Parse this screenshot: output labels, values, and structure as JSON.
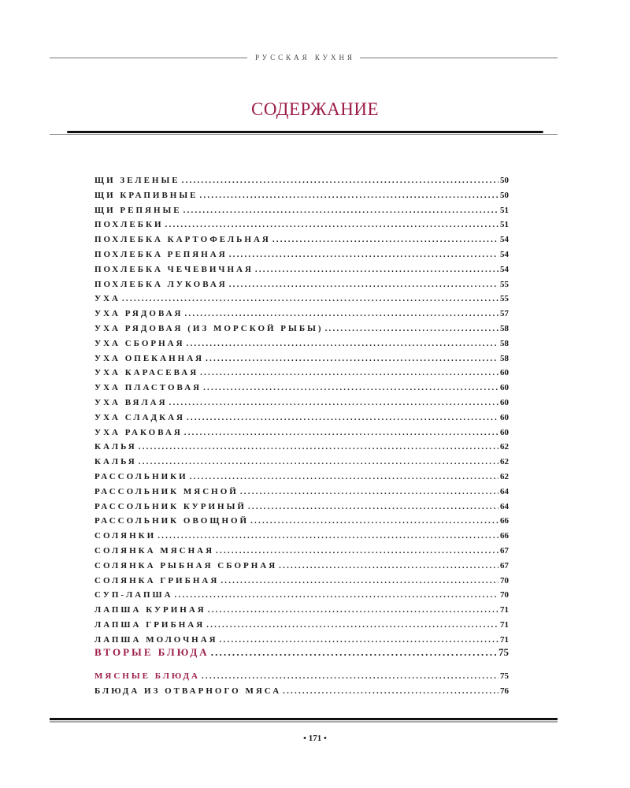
{
  "running_head": "РУССКАЯ КУХНЯ",
  "title": "СОДЕРЖАНИЕ",
  "entries": [
    {
      "label": "ЩИ ЗЕЛЕНЫЕ",
      "page": "50"
    },
    {
      "label": "ЩИ КРАПИВНЫЕ",
      "page": "50"
    },
    {
      "label": "ЩИ РЕПЯНЫЕ",
      "page": "51"
    },
    {
      "label": "ПОХЛЕБКИ",
      "page": "51"
    },
    {
      "label": "ПОХЛЕБКА КАРТОФЕЛЬНАЯ",
      "page": "54"
    },
    {
      "label": "ПОХЛЕБКА РЕПЯНАЯ",
      "page": "54"
    },
    {
      "label": "ПОХЛЕБКА ЧЕЧЕВИЧНАЯ",
      "page": "54"
    },
    {
      "label": "ПОХЛЕБКА ЛУКОВАЯ",
      "page": "55"
    },
    {
      "label": "УХА",
      "page": "55"
    },
    {
      "label": "УХА РЯДОВАЯ",
      "page": "57"
    },
    {
      "label": "УХА РЯДОВАЯ (ИЗ МОРСКОЙ РЫБЫ)",
      "page": "58"
    },
    {
      "label": "УХА СБОРНАЯ",
      "page": "58"
    },
    {
      "label": "УХА ОПЕКАННАЯ",
      "page": "58"
    },
    {
      "label": "УХА КАРАСЕВАЯ",
      "page": "60"
    },
    {
      "label": "УХА ПЛАСТОВАЯ",
      "page": "60"
    },
    {
      "label": "УХА ВЯЛАЯ",
      "page": "60"
    },
    {
      "label": "УХА СЛАДКАЯ",
      "page": "60"
    },
    {
      "label": "УХА РАКОВАЯ",
      "page": "60"
    },
    {
      "label": "КАЛЬЯ",
      "page": "62"
    },
    {
      "label": "КАЛЬЯ",
      "page": "62"
    },
    {
      "label": "РАССОЛЬНИКИ",
      "page": "62"
    },
    {
      "label": "РАССОЛЬНИК МЯСНОЙ",
      "page": "64"
    },
    {
      "label": "РАССОЛЬНИК КУРИНЫЙ",
      "page": "64"
    },
    {
      "label": "РАССОЛЬНИК ОВОЩНОЙ",
      "page": "66"
    },
    {
      "label": "СОЛЯНКИ",
      "page": "66"
    },
    {
      "label": "СОЛЯНКА МЯСНАЯ",
      "page": "67"
    },
    {
      "label": "СОЛЯНКА РЫБНАЯ СБОРНАЯ",
      "page": "67"
    },
    {
      "label": "СОЛЯНКА ГРИБНАЯ",
      "page": "70"
    },
    {
      "label": "СУП-ЛАПША",
      "page": "70"
    },
    {
      "label": "ЛАПША КУРИНАЯ",
      "page": "71"
    },
    {
      "label": "ЛАПША ГРИБНАЯ",
      "page": "71"
    },
    {
      "label": "ЛАПША МОЛОЧНАЯ",
      "page": "71"
    }
  ],
  "section": {
    "label": "ВТОРЫЕ БЛЮДА",
    "page": "75"
  },
  "subsection": {
    "label": "МЯСНЫЕ БЛЮДА",
    "page": "75"
  },
  "last_entry": {
    "label": "БЛЮДА ИЗ ОТВАРНОГО МЯСА",
    "page": "76"
  },
  "page_number": "• 171 •",
  "colors": {
    "accent": "#9c1c4a",
    "text": "#1a1a1a"
  }
}
